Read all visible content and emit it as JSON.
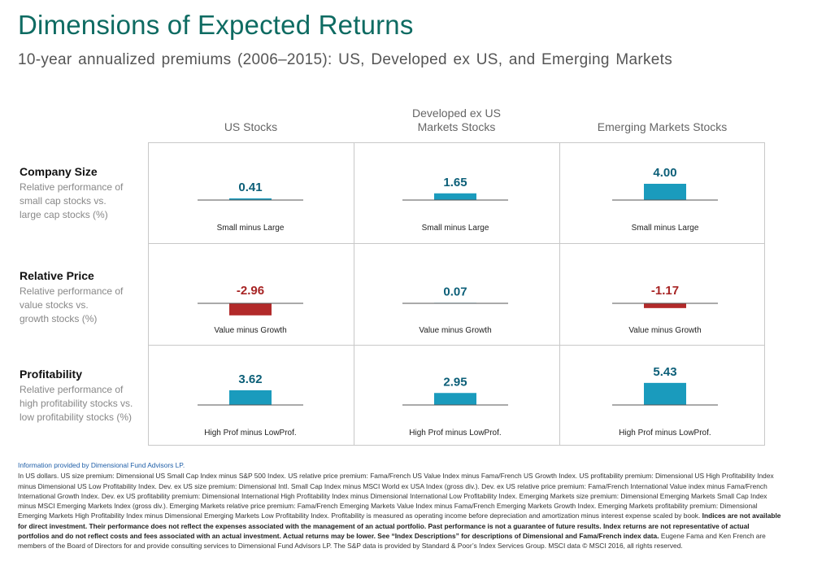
{
  "header": {
    "title": "Dimensions of Expected Returns",
    "subtitle": "10-year annualized premiums  (2006–2015): US, Developed ex US, and Emerging Markets"
  },
  "columns": [
    "US Stocks",
    "Developed ex US",
    "Markets Stocks",
    "Emerging Markets Stocks"
  ],
  "rows": [
    {
      "title": "Company  Size",
      "desc": [
        "Relative performance of",
        "small cap stocks vs.",
        "large cap stocks (%)"
      ]
    },
    {
      "title": "Relative Price",
      "desc": [
        "Relative performance of",
        "value stocks vs.",
        "growth stocks (%)"
      ]
    },
    {
      "title": "Profitability",
      "desc": [
        "Relative performance of",
        "high profitability stocks vs.",
        "low profitability stocks (%)"
      ]
    }
  ],
  "colors": {
    "positive": "#1a9bbd",
    "negative": "#b22a2a",
    "positive_label": "#0c5f78",
    "negative_label": "#a72424",
    "axis": "#555555"
  },
  "chart_data": {
    "type": "bar",
    "title": "Dimensions of Expected Returns",
    "markets": [
      "US Stocks",
      "Developed ex US Markets Stocks",
      "Emerging Markets Stocks"
    ],
    "premiums": [
      "Company Size",
      "Relative Price",
      "Profitability"
    ],
    "cells": [
      [
        {
          "value": 0.41,
          "label": "0.41",
          "caption": "Small minus Large"
        },
        {
          "value": 1.65,
          "label": "1.65",
          "caption": "Small minus Large"
        },
        {
          "value": 4.0,
          "label": "4.00",
          "caption": "Small minus Large"
        }
      ],
      [
        {
          "value": -2.96,
          "label": "-2.96",
          "caption": "Value minus Growth"
        },
        {
          "value": 0.07,
          "label": "0.07",
          "caption": "Value minus Growth"
        },
        {
          "value": -1.17,
          "label": "-1.17",
          "caption": "Value minus Growth"
        }
      ],
      [
        {
          "value": 3.62,
          "label": "3.62",
          "caption": "High Prof minus LowProf."
        },
        {
          "value": 2.95,
          "label": "2.95",
          "caption": "High Prof minus LowProf."
        },
        {
          "value": 5.43,
          "label": "5.43",
          "caption": "High Prof minus LowProf."
        }
      ]
    ]
  },
  "footer": {
    "source": "Information provided by Dimensional Fund Advisors LP.",
    "p1": "In US dollars. US size premium: Dimensional US Small Cap Index minus S&P 500 Index. US relative price premium: Fama/French US Value Index minus Fama/French US Growth Index. US profitability premium: Dimensional US High Profitability Index minus Dimensional US Low Profitability Index. Dev. ex US size premium: Dimensional Intl. Small Cap Index minus MSCI World ex USA Index (gross div.). Dev. ex US relative price premium: Fama/French International Value index minus Fama/French International Growth Index. Dev. ex US profitability premium: Dimensional International High Profitability Index minus Dimensional International Low Profitability Index. Emerging Markets size premium: Dimensional Emerging Markets Small Cap Index minus MSCI Emerging Markets Index (gross div.). Emerging Markets relative price premium: Fama/French Emerging Markets Value Index minus Fama/French Emerging Markets Growth Index. Emerging Markets profitability premium: Dimensional Emerging Markets High Profitability Index minus Dimensional Emerging Markets Low Profitability Index. Profitability is measured as operating income before depreciation and amortization minus interest expense scaled by book.",
    "bold": "Indices are not available for direct investment. Their performance does not reflect the expenses associated with the management of an actual portfolio. Past performance is not a guarantee of future results. Index returns are not representative of actual portfolios and do not reflect costs and fees associated with an actual investment. Actual returns may be lower. See “Index Descriptions” for descriptions of Dimensional and Fama/French index data.",
    "p2": "Eugene Fama and Ken French are members of the Board of Directors for and provide consulting services to Dimensional Fund Advisors LP. The S&P data is provided by Standard & Poor’s Index Services Group. MSCI data © MSCI 2016, all rights reserved."
  }
}
